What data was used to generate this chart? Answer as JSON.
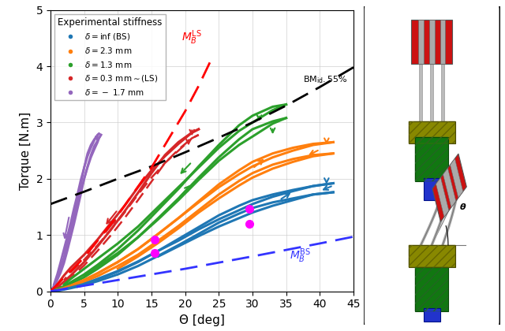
{
  "title": "",
  "xlabel": "Θ [deg]",
  "ylabel": "Torque [N.m]",
  "xlim": [
    0,
    45
  ],
  "ylim": [
    0,
    5
  ],
  "xticks": [
    0,
    5,
    10,
    15,
    20,
    25,
    30,
    35,
    40,
    45
  ],
  "yticks": [
    0,
    1,
    2,
    3,
    4,
    5
  ],
  "legend_title": "Experimental stiffness",
  "colors": {
    "blue": "#1f77b4",
    "orange": "#ff7f0e",
    "green": "#2ca02c",
    "red": "#d62728",
    "purple": "#9467bd",
    "black": "#000000",
    "magenta": "#ff00ff",
    "dkred": "#cc0000",
    "dkgreen": "#006600",
    "olive": "#888800",
    "dkblue": "#0000aa",
    "gray": "#888888"
  },
  "bm_id_points_x": [
    0,
    5,
    10,
    15,
    20,
    25,
    30,
    35,
    40,
    45
  ],
  "bm_id_points_y": [
    1.55,
    1.77,
    2.0,
    2.22,
    2.47,
    2.73,
    3.0,
    3.3,
    3.63,
    3.98
  ],
  "bm_ls_points_x": [
    0,
    5,
    10,
    15,
    20,
    22,
    24
  ],
  "bm_ls_points_y": [
    0.0,
    0.6,
    1.35,
    2.2,
    3.2,
    3.65,
    4.15
  ],
  "bm_bs_points_x": [
    0,
    10,
    20,
    30,
    40,
    45
  ],
  "bm_bs_points_y": [
    0.0,
    0.2,
    0.4,
    0.62,
    0.85,
    0.97
  ],
  "magenta_dots": [
    [
      15.5,
      0.92
    ],
    [
      15.5,
      0.68
    ],
    [
      29.5,
      1.47
    ],
    [
      29.5,
      1.2
    ]
  ]
}
